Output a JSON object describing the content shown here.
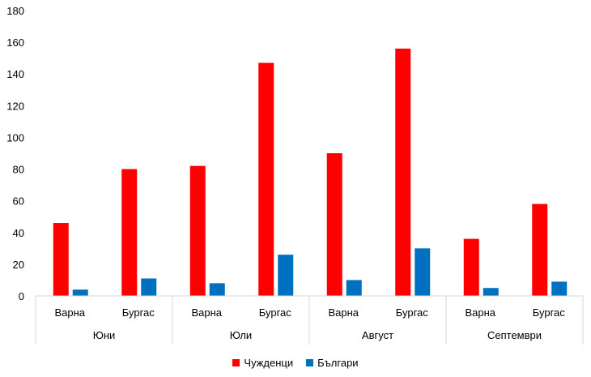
{
  "chart_data": {
    "type": "bar",
    "groups": [
      {
        "label": "Юни",
        "categories": [
          "Варна",
          "Бургас"
        ]
      },
      {
        "label": "Юли",
        "categories": [
          "Варна",
          "Бургас"
        ]
      },
      {
        "label": "Август",
        "categories": [
          "Варна",
          "Бургас"
        ]
      },
      {
        "label": "Септември",
        "categories": [
          "Варна",
          "Бургас"
        ]
      }
    ],
    "categories": [
      "Варна",
      "Бургас",
      "Варна",
      "Бургас",
      "Варна",
      "Бургас",
      "Варна",
      "Бургас"
    ],
    "series": [
      {
        "name": "Чужденци",
        "color": "#ff0000",
        "values": [
          46,
          80,
          82,
          147,
          90,
          156,
          36,
          58
        ]
      },
      {
        "name": "Българи",
        "color": "#0070c0",
        "values": [
          4,
          11,
          8,
          26,
          10,
          30,
          5,
          9
        ]
      }
    ],
    "ylim": [
      0,
      180
    ],
    "yticks": [
      0,
      20,
      40,
      60,
      80,
      100,
      120,
      140,
      160,
      180
    ],
    "grid": false,
    "legend_position": "bottom"
  }
}
